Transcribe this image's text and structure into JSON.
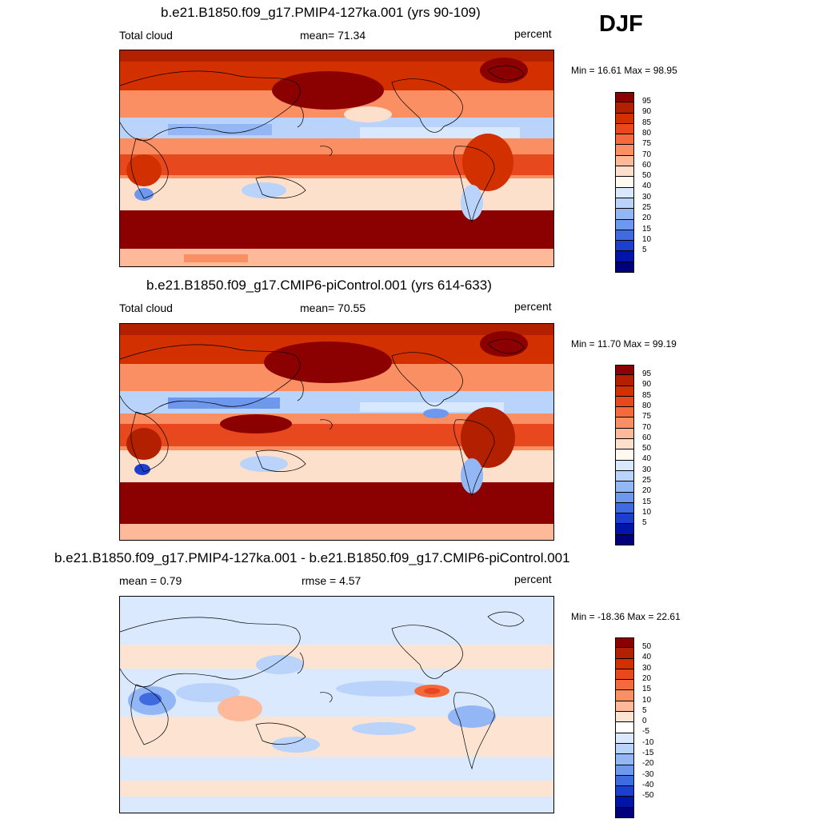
{
  "season": "DJF",
  "panels": [
    {
      "title": "b.e21.B1850.f09_g17.PMIP4-127ka.001 (yrs 90-109)",
      "left_label": "Total cloud",
      "mid_label": "mean=  71.34",
      "right_label": "percent",
      "minmax": "Min =  16.61 Max =  98.95",
      "colorbar_labels": [
        "95",
        "90",
        "85",
        "80",
        "75",
        "70",
        "60",
        "50",
        "40",
        "30",
        "25",
        "20",
        "15",
        "10",
        "5"
      ],
      "colors": [
        "#8b0000",
        "#b22000",
        "#d33000",
        "#e8481e",
        "#f56a3c",
        "#fb8f64",
        "#fdb99a",
        "#fde0cc",
        "#fefaf0",
        "#d8e8ff",
        "#b9d3fb",
        "#93b6f5",
        "#6e97ee",
        "#3f6be1",
        "#1c3fd0",
        "#0015a8",
        "#00007a"
      ]
    },
    {
      "title": "b.e21.B1850.f09_g17.CMIP6-piControl.001 (yrs 614-633)",
      "left_label": "Total cloud",
      "mid_label": "mean=  70.55",
      "right_label": "percent",
      "minmax": "Min =  11.70 Max =  99.19",
      "colorbar_labels": [
        "95",
        "90",
        "85",
        "80",
        "75",
        "70",
        "60",
        "50",
        "40",
        "30",
        "25",
        "20",
        "15",
        "10",
        "5"
      ],
      "colors": [
        "#8b0000",
        "#b22000",
        "#d33000",
        "#e8481e",
        "#f56a3c",
        "#fb8f64",
        "#fdb99a",
        "#fde0cc",
        "#fefaf0",
        "#d8e8ff",
        "#b9d3fb",
        "#93b6f5",
        "#6e97ee",
        "#3f6be1",
        "#1c3fd0",
        "#0015a8",
        "#00007a"
      ]
    },
    {
      "title": "b.e21.B1850.f09_g17.PMIP4-127ka.001 - b.e21.B1850.f09_g17.CMIP6-piControl.001",
      "left_label": "mean =   0.79",
      "mid_label": "rmse =   4.57",
      "right_label": "percent",
      "minmax": "Min = -18.36 Max =  22.61",
      "colorbar_labels": [
        "50",
        "40",
        "30",
        "20",
        "15",
        "10",
        "5",
        "0",
        "-5",
        "-10",
        "-15",
        "-20",
        "-30",
        "-40",
        "-50"
      ],
      "colors": [
        "#8b0000",
        "#b22000",
        "#d33000",
        "#e8481e",
        "#f56a3c",
        "#fb8f64",
        "#fdb99a",
        "#fde4d2",
        "#ffffff",
        "#dbe9ff",
        "#b9d3fb",
        "#93b6f5",
        "#6e97ee",
        "#3f6be1",
        "#1c3fd0",
        "#0015a8",
        "#00007a"
      ]
    }
  ]
}
